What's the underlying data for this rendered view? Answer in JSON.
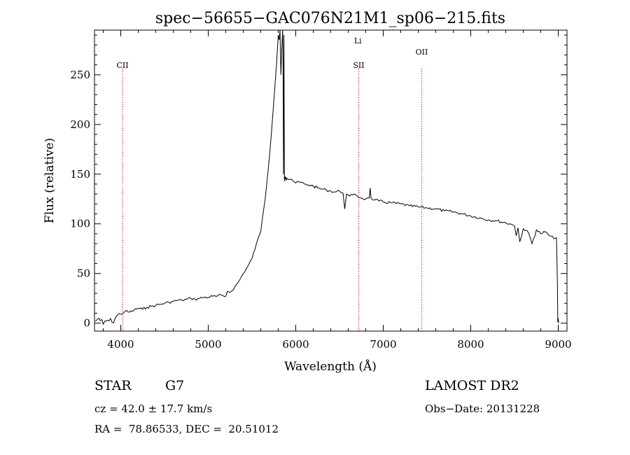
{
  "chart_data": {
    "type": "line",
    "title": "spec−56655−GAC076N21M1_sp06−215.fits",
    "xlabel": "Wavelength (Å)",
    "ylabel": "Flux (relative)",
    "xlim": [
      3700,
      9100
    ],
    "ylim": [
      -8,
      295
    ],
    "xticks": [
      {
        "value": 4000,
        "label": "4000"
      },
      {
        "value": 5000,
        "label": "5000"
      },
      {
        "value": 6000,
        "label": "6000"
      },
      {
        "value": 7000,
        "label": "7000"
      },
      {
        "value": 8000,
        "label": "8000"
      },
      {
        "value": 9000,
        "label": "9000"
      }
    ],
    "yticks": [
      {
        "value": 0,
        "label": "0"
      },
      {
        "value": 50,
        "label": "50"
      },
      {
        "value": 100,
        "label": "100"
      },
      {
        "value": 150,
        "label": "150"
      },
      {
        "value": 200,
        "label": "200"
      },
      {
        "value": 250,
        "label": "250"
      }
    ],
    "spectrum": {
      "x": [
        3710,
        3750,
        3800,
        3850,
        3900,
        3950,
        4000,
        4050,
        4100,
        4150,
        4200,
        4250,
        4300,
        4350,
        4400,
        4450,
        4500,
        4550,
        4600,
        4650,
        4700,
        4750,
        4800,
        4850,
        4900,
        4950,
        5000,
        5050,
        5100,
        5150,
        5200,
        5220,
        5250,
        5300,
        5350,
        5400,
        5450,
        5500,
        5550,
        5580,
        5600,
        5650,
        5700,
        5750,
        5780,
        5800,
        5810,
        5820,
        5830,
        5840,
        5850,
        5855,
        5860,
        5865,
        5870,
        5875,
        5880,
        5885,
        5890,
        5900,
        5950,
        6000,
        6050,
        6100,
        6150,
        6200,
        6250,
        6300,
        6350,
        6400,
        6450,
        6500,
        6540,
        6560,
        6580,
        6600,
        6650,
        6700,
        6750,
        6800,
        6840,
        6850,
        6860,
        6900,
        6950,
        7000,
        7100,
        7200,
        7300,
        7400,
        7500,
        7600,
        7700,
        7800,
        7900,
        8000,
        8100,
        8200,
        8300,
        8400,
        8450,
        8500,
        8520,
        8540,
        8560,
        8600,
        8660,
        8700,
        8750,
        8800,
        8850,
        8900,
        8950,
        8980,
        8990,
        8995,
        9000,
        9005
      ],
      "y": [
        2,
        5,
        -1,
        3,
        1,
        7,
        9,
        12,
        11,
        13,
        15,
        14,
        16,
        17,
        18,
        19,
        20,
        21,
        22,
        23,
        23,
        24,
        25,
        24,
        25,
        26,
        26,
        27,
        27,
        28,
        27,
        32,
        31,
        36,
        42,
        50,
        57,
        65,
        80,
        88,
        92,
        125,
        168,
        225,
        260,
        290,
        285,
        295,
        250,
        275,
        295,
        260,
        150,
        290,
        143,
        148,
        145,
        147,
        144,
        146,
        145,
        141,
        142,
        140,
        139,
        138,
        136,
        135,
        134,
        133,
        132,
        133,
        131,
        115,
        130,
        129,
        129,
        128,
        126,
        125,
        126,
        136,
        126,
        124,
        123,
        122,
        121,
        120,
        118,
        117,
        116,
        115,
        113,
        112,
        110,
        108,
        106,
        104,
        103,
        101,
        100,
        98,
        88,
        96,
        82,
        95,
        91,
        80,
        94,
        90,
        92,
        88,
        85,
        86,
        40,
        1,
        5,
        0
      ]
    },
    "lines": [
      {
        "label": "CII",
        "x": 4020,
        "color": "#ff0000"
      },
      {
        "label": "SII",
        "x": 6720,
        "color": "#ff0000"
      },
      {
        "label": "Li",
        "x": 6710,
        "color": "#ff0000"
      },
      {
        "label": "OII",
        "x": 7440,
        "color": "#ff0000"
      }
    ],
    "line_color": "#000000"
  },
  "info": {
    "class_label": "STAR",
    "subclass": "G7",
    "redshift": "cz = 42.0 ± 17.7 km/s",
    "coords": "RA =  78.86533, DEC =  20.51012",
    "survey": "LAMOST DR2",
    "obs_date": "Obs−Date: 20131228"
  }
}
